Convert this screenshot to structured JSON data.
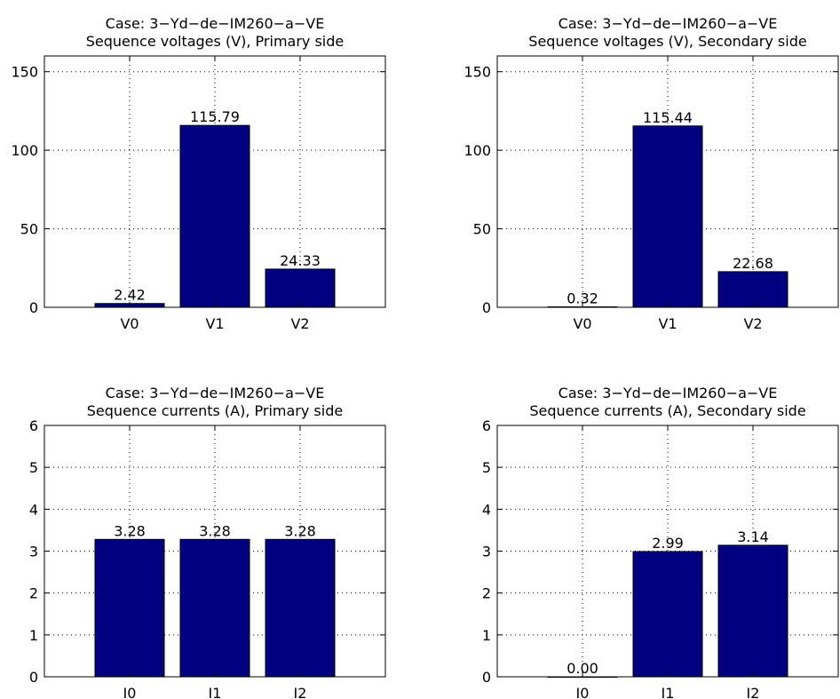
{
  "chart_data": [
    {
      "type": "bar",
      "title": "Case: 3−Yd−de−IM260−a−VE",
      "subtitle": "Sequence voltages (V), Primary side",
      "categories": [
        "V0",
        "V1",
        "V2"
      ],
      "values": [
        2.42,
        115.79,
        24.33
      ],
      "data_labels": [
        "2.42",
        "115.79",
        "24.33"
      ],
      "ylim": [
        0,
        160
      ],
      "yticks": [
        0,
        50,
        100,
        150
      ],
      "grid": true,
      "bar_color": "#000080"
    },
    {
      "type": "bar",
      "title": "Case: 3−Yd−de−IM260−a−VE",
      "subtitle": "Sequence voltages (V), Secondary side",
      "categories": [
        "V0",
        "V1",
        "V2"
      ],
      "values": [
        0.32,
        115.44,
        22.68
      ],
      "data_labels": [
        "0.32",
        "115.44",
        "22.68"
      ],
      "ylim": [
        0,
        160
      ],
      "yticks": [
        0,
        50,
        100,
        150
      ],
      "grid": true,
      "bar_color": "#000080"
    },
    {
      "type": "bar",
      "title": "Case: 3−Yd−de−IM260−a−VE",
      "subtitle": "Sequence currents (A), Primary side",
      "categories": [
        "I0",
        "I1",
        "I2"
      ],
      "values": [
        3.28,
        3.28,
        3.28
      ],
      "data_labels": [
        "3.28",
        "3.28",
        "3.28"
      ],
      "ylim": [
        0,
        6
      ],
      "yticks": [
        0,
        1,
        2,
        3,
        4,
        5,
        6
      ],
      "grid": true,
      "bar_color": "#000080"
    },
    {
      "type": "bar",
      "title": "Case: 3−Yd−de−IM260−a−VE",
      "subtitle": "Sequence currents (A), Secondary side",
      "categories": [
        "I0",
        "I1",
        "I2"
      ],
      "values": [
        0.0,
        2.99,
        3.14
      ],
      "data_labels": [
        "0.00",
        "2.99",
        "3.14"
      ],
      "ylim": [
        0,
        6
      ],
      "yticks": [
        0,
        1,
        2,
        3,
        4,
        5,
        6
      ],
      "grid": true,
      "bar_color": "#000080"
    }
  ]
}
